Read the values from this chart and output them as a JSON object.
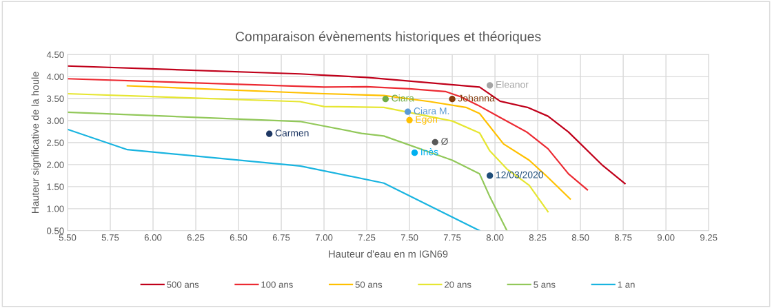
{
  "chart_data": {
    "type": "line",
    "title": "Comparaison évènements historiques et théoriques",
    "xlabel": "Hauteur d'eau en m IGN69",
    "ylabel": "Hauteur significative de la houle",
    "xlim": [
      5.5,
      9.25
    ],
    "xticks": [
      {
        "value": 5.5,
        "label": "5.50"
      },
      {
        "value": 5.75,
        "label": "5.75"
      },
      {
        "value": 6.0,
        "label": "6.00"
      },
      {
        "value": 6.25,
        "label": "6.25"
      },
      {
        "value": 6.5,
        "label": "6.50"
      },
      {
        "value": 6.75,
        "label": "6.75"
      },
      {
        "value": 7.0,
        "label": "7.00"
      },
      {
        "value": 7.25,
        "label": "7.25"
      },
      {
        "value": 7.5,
        "label": "7.50"
      },
      {
        "value": 7.75,
        "label": "7.75"
      },
      {
        "value": 8.0,
        "label": "8.00"
      },
      {
        "value": 8.25,
        "label": "8.25"
      },
      {
        "value": 8.5,
        "label": "8.50"
      },
      {
        "value": 8.75,
        "label": "8.75"
      },
      {
        "value": 9.0,
        "label": "9.00"
      },
      {
        "value": 9.25,
        "label": "9.25"
      }
    ],
    "ylim": [
      0.5,
      4.5
    ],
    "yticks": [
      {
        "value": 0.5,
        "label": "0.50"
      },
      {
        "value": 1.0,
        "label": "1.00"
      },
      {
        "value": 1.5,
        "label": "1.50"
      },
      {
        "value": 2.0,
        "label": "2.00"
      },
      {
        "value": 2.5,
        "label": "2.50"
      },
      {
        "value": 3.0,
        "label": "3.00"
      },
      {
        "value": 3.5,
        "label": "3.50"
      },
      {
        "value": 4.0,
        "label": "4.00"
      },
      {
        "value": 4.5,
        "label": "4.50"
      }
    ],
    "grid": true,
    "legend": "bottom",
    "line_style": "solid",
    "series": [
      {
        "name": "500 ans",
        "color": "#c0001a",
        "x": [
          5.5,
          6.86,
          7.0,
          7.25,
          7.91,
          8.03,
          8.19,
          8.31,
          8.43,
          8.63,
          8.76
        ],
        "values": [
          4.24,
          4.06,
          4.03,
          3.98,
          3.76,
          3.44,
          3.3,
          3.1,
          2.74,
          1.98,
          1.57
        ]
      },
      {
        "name": "100 ans",
        "color": "#ec2a32",
        "x": [
          5.5,
          7.0,
          7.25,
          7.5,
          7.71,
          7.8,
          7.9,
          8.03,
          8.19,
          8.31,
          8.43,
          8.54
        ],
        "values": [
          3.95,
          3.76,
          3.77,
          3.72,
          3.66,
          3.54,
          3.35,
          3.07,
          2.73,
          2.36,
          1.79,
          1.43
        ]
      },
      {
        "name": "50 ans",
        "color": "#ffc000",
        "x": [
          5.85,
          7.0,
          7.35,
          7.62,
          7.83,
          7.91,
          8.05,
          8.2,
          8.31,
          8.44
        ],
        "values": [
          3.79,
          3.61,
          3.57,
          3.43,
          3.3,
          3.16,
          2.47,
          2.1,
          1.71,
          1.22
        ]
      },
      {
        "name": "20 ans",
        "color": "#e6e632",
        "x": [
          5.5,
          6.86,
          7.0,
          7.35,
          7.75,
          7.91,
          7.97,
          8.07,
          8.2,
          8.31
        ],
        "values": [
          3.61,
          3.43,
          3.32,
          3.3,
          2.99,
          2.72,
          2.31,
          1.9,
          1.53,
          0.93
        ]
      },
      {
        "name": "5 ans",
        "color": "#92c85a",
        "x": [
          5.5,
          6.86,
          7.22,
          7.35,
          7.75,
          7.91,
          7.97,
          8.07
        ],
        "values": [
          3.19,
          2.98,
          2.71,
          2.65,
          2.1,
          1.79,
          1.27,
          0.5
        ]
      },
      {
        "name": "1 an",
        "color": "#19b4e0",
        "x": [
          5.5,
          5.85,
          6.86,
          7.15,
          7.35,
          7.91
        ],
        "values": [
          2.8,
          2.34,
          1.97,
          1.74,
          1.58,
          0.5
        ]
      },
      {
        "type": "scatter",
        "name": "Eleanor",
        "color": "#a5a5a5",
        "x": [
          7.97
        ],
        "values": [
          3.8
        ]
      },
      {
        "type": "scatter",
        "name": "Ciara",
        "color": "#70ad47",
        "x": [
          7.36
        ],
        "values": [
          3.49
        ]
      },
      {
        "type": "scatter",
        "name": "Johanna",
        "color": "#843c0c",
        "x": [
          7.75
        ],
        "values": [
          3.49
        ]
      },
      {
        "type": "scatter",
        "name": "Ciara M.",
        "color": "#5b9bd5",
        "x": [
          7.49
        ],
        "values": [
          3.2
        ]
      },
      {
        "type": "scatter",
        "name": "Egon",
        "color": "#ffc000",
        "x": [
          7.5
        ],
        "values": [
          3.01
        ]
      },
      {
        "type": "scatter",
        "name": "Ø",
        "color": "#595959",
        "x": [
          7.65
        ],
        "values": [
          2.51
        ]
      },
      {
        "type": "scatter",
        "name": "Inès",
        "color": "#00b0f0",
        "x": [
          7.53
        ],
        "values": [
          2.27
        ]
      },
      {
        "type": "scatter",
        "name": "12/03/2020",
        "color": "#1f4e79",
        "x": [
          7.97
        ],
        "values": [
          1.75
        ]
      },
      {
        "type": "scatter",
        "name": "Carmen",
        "color": "#1f3864",
        "x": [
          6.68
        ],
        "values": [
          2.7
        ]
      }
    ]
  }
}
